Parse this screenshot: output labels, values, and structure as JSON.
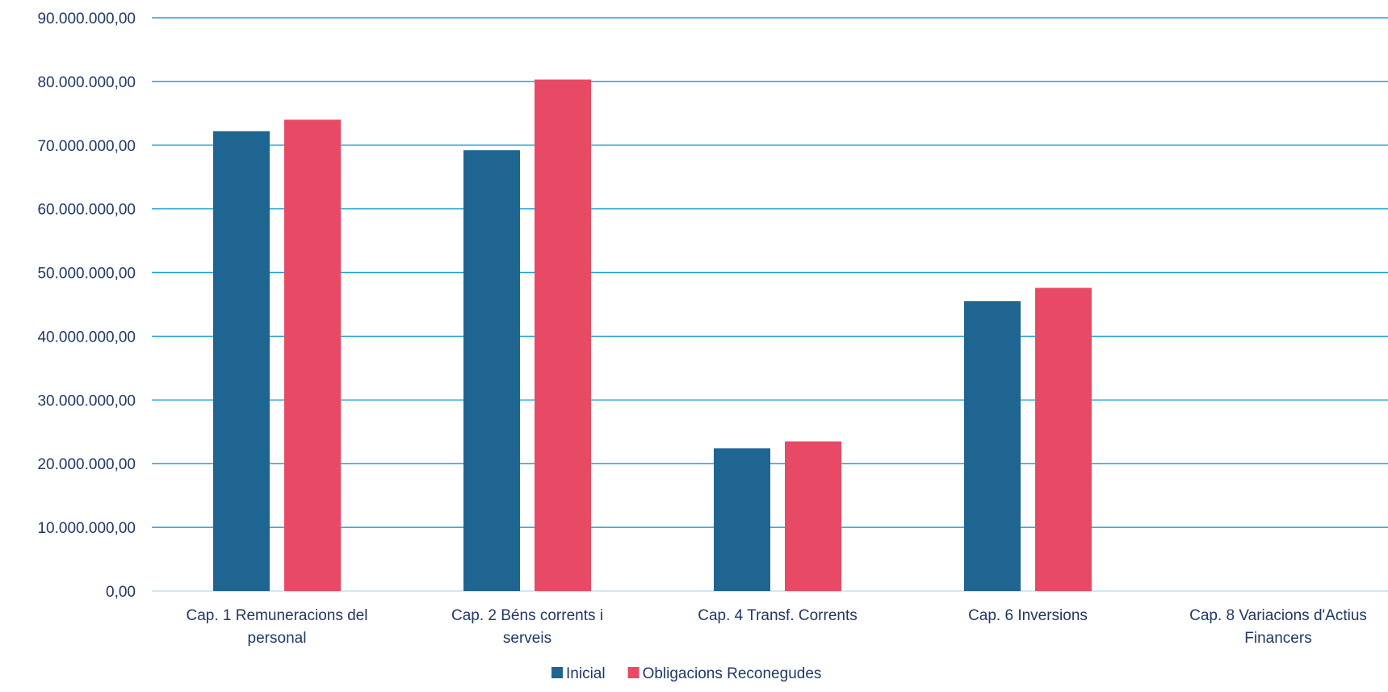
{
  "chart_data": {
    "type": "bar",
    "categories": [
      [
        "Cap. 1 Remuneracions del",
        "personal"
      ],
      [
        "Cap. 2 Béns corrents i",
        "serveis"
      ],
      [
        "Cap. 4 Transf. Corrents"
      ],
      [
        "Cap. 6 Inversions"
      ],
      [
        "Cap. 8 Variacions d'Actius",
        "Financers"
      ]
    ],
    "series": [
      {
        "name": "Inicial",
        "color": "#1f6591",
        "values": [
          72200000,
          69200000,
          22400000,
          45500000,
          0
        ]
      },
      {
        "name": "Obligacions Reconegudes",
        "color": "#e84a65",
        "values": [
          74000000,
          80300000,
          23500000,
          47600000,
          0
        ]
      }
    ],
    "ylim": [
      0,
      90000000
    ],
    "yticks": [
      "0,00",
      "10.000.000,00",
      "20.000.000,00",
      "30.000.000,00",
      "40.000.000,00",
      "50.000.000,00",
      "60.000.000,00",
      "70.000.000,00",
      "80.000.000,00",
      "90.000.000,00"
    ],
    "grid": true,
    "gridline_color": "#1ea0d6",
    "legend_position": "bottom"
  }
}
